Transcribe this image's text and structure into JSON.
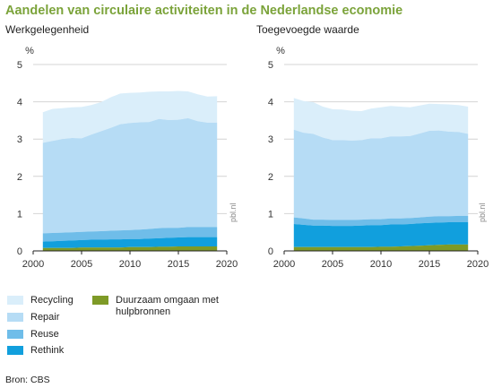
{
  "title": "Aandelen van circulaire activiteiten in de Nederlandse economie",
  "source": "Bron: CBS",
  "watermark": "pbl.nl",
  "colors": {
    "Recycling": "#daeefa",
    "Repair": "#b6dcf5",
    "Reuse": "#6fbde9",
    "Rethink": "#119fdd",
    "Duurzaam omgaan met hulpbronnen": "#7e9a27"
  },
  "legend": [
    {
      "label": "Recycling",
      "key": "Recycling"
    },
    {
      "label": "Repair",
      "key": "Repair"
    },
    {
      "label": "Reuse",
      "key": "Reuse"
    },
    {
      "label": "Rethink",
      "key": "Rethink"
    },
    {
      "label": "Duurzaam omgaan met hulpbronnen",
      "key": "Duurzaam omgaan met hulpbronnen"
    }
  ],
  "chart_data": [
    {
      "type": "area",
      "stacked": true,
      "title": "Werkgelegenheid",
      "ylabel": "%",
      "xlim": [
        2000,
        2020
      ],
      "ylim": [
        0,
        5
      ],
      "xticks": [
        2000,
        2005,
        2010,
        2015,
        2020
      ],
      "yticks": [
        0,
        1,
        2,
        3,
        4,
        5
      ],
      "grid": true,
      "x": [
        2001,
        2002,
        2003,
        2004,
        2005,
        2006,
        2007,
        2008,
        2009,
        2010,
        2011,
        2012,
        2013,
        2014,
        2015,
        2016,
        2017,
        2018,
        2019
      ],
      "series": [
        {
          "name": "Duurzaam omgaan met hulpbronnen",
          "values": [
            0.08,
            0.08,
            0.08,
            0.08,
            0.09,
            0.09,
            0.09,
            0.09,
            0.09,
            0.1,
            0.1,
            0.1,
            0.11,
            0.11,
            0.12,
            0.12,
            0.12,
            0.12,
            0.12
          ]
        },
        {
          "name": "Rethink",
          "values": [
            0.17,
            0.18,
            0.19,
            0.2,
            0.2,
            0.21,
            0.21,
            0.22,
            0.22,
            0.22,
            0.22,
            0.23,
            0.23,
            0.24,
            0.24,
            0.25,
            0.25,
            0.25,
            0.25
          ]
        },
        {
          "name": "Reuse",
          "values": [
            0.22,
            0.22,
            0.22,
            0.22,
            0.22,
            0.22,
            0.23,
            0.23,
            0.24,
            0.24,
            0.25,
            0.26,
            0.27,
            0.27,
            0.26,
            0.27,
            0.27,
            0.27,
            0.27
          ]
        },
        {
          "name": "Repair",
          "values": [
            2.43,
            2.47,
            2.51,
            2.53,
            2.51,
            2.6,
            2.68,
            2.76,
            2.85,
            2.87,
            2.88,
            2.87,
            2.93,
            2.89,
            2.9,
            2.92,
            2.84,
            2.8,
            2.8
          ]
        },
        {
          "name": "Recycling",
          "values": [
            0.82,
            0.86,
            0.83,
            0.82,
            0.84,
            0.79,
            0.78,
            0.82,
            0.82,
            0.81,
            0.8,
            0.81,
            0.74,
            0.77,
            0.77,
            0.72,
            0.72,
            0.7,
            0.71
          ]
        }
      ]
    },
    {
      "type": "area",
      "stacked": true,
      "title": "Toegevoegde waarde",
      "ylabel": "%",
      "xlim": [
        2000,
        2020
      ],
      "ylim": [
        0,
        5
      ],
      "xticks": [
        2000,
        2005,
        2010,
        2015,
        2020
      ],
      "yticks": [
        0,
        1,
        2,
        3,
        4,
        5
      ],
      "grid": true,
      "x": [
        2001,
        2002,
        2003,
        2004,
        2005,
        2006,
        2007,
        2008,
        2009,
        2010,
        2011,
        2012,
        2013,
        2014,
        2015,
        2016,
        2017,
        2018,
        2019
      ],
      "series": [
        {
          "name": "Duurzaam omgaan met hulpbronnen",
          "values": [
            0.1,
            0.1,
            0.1,
            0.1,
            0.1,
            0.1,
            0.1,
            0.1,
            0.1,
            0.11,
            0.11,
            0.12,
            0.13,
            0.14,
            0.15,
            0.16,
            0.17,
            0.17,
            0.17
          ]
        },
        {
          "name": "Rethink",
          "values": [
            0.62,
            0.6,
            0.58,
            0.58,
            0.57,
            0.57,
            0.57,
            0.58,
            0.59,
            0.58,
            0.6,
            0.59,
            0.59,
            0.6,
            0.6,
            0.6,
            0.6,
            0.6,
            0.6
          ]
        },
        {
          "name": "Reuse",
          "values": [
            0.18,
            0.17,
            0.16,
            0.16,
            0.16,
            0.16,
            0.16,
            0.16,
            0.16,
            0.16,
            0.16,
            0.16,
            0.16,
            0.16,
            0.17,
            0.17,
            0.16,
            0.17,
            0.17
          ]
        },
        {
          "name": "Repair",
          "values": [
            2.35,
            2.3,
            2.3,
            2.2,
            2.14,
            2.14,
            2.13,
            2.13,
            2.17,
            2.17,
            2.2,
            2.2,
            2.2,
            2.25,
            2.3,
            2.3,
            2.27,
            2.25,
            2.2
          ]
        },
        {
          "name": "Recycling",
          "values": [
            0.85,
            0.85,
            0.85,
            0.83,
            0.83,
            0.82,
            0.8,
            0.78,
            0.8,
            0.83,
            0.82,
            0.8,
            0.77,
            0.75,
            0.73,
            0.71,
            0.73,
            0.72,
            0.73
          ]
        }
      ]
    }
  ]
}
